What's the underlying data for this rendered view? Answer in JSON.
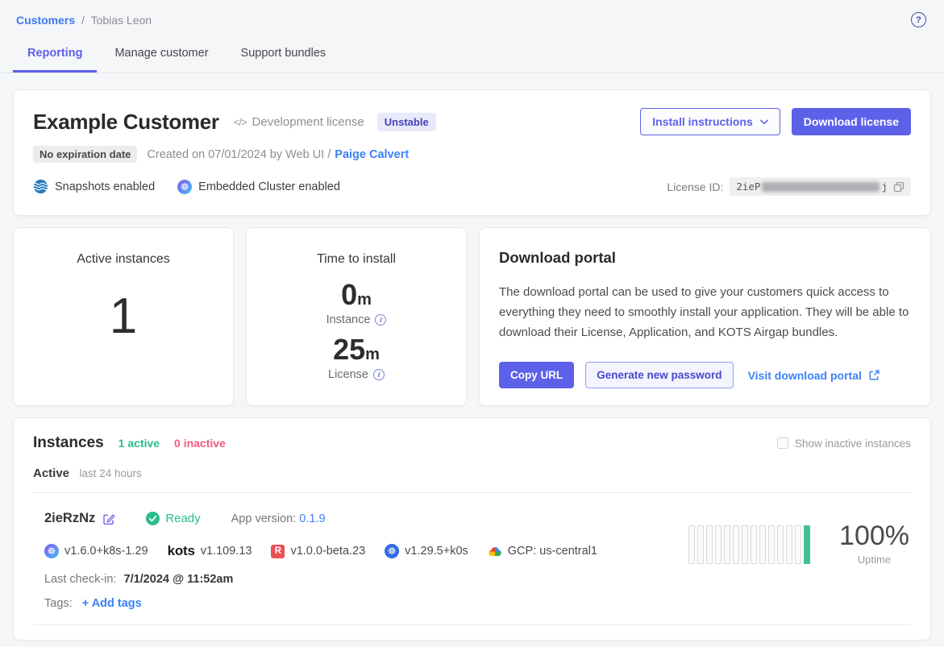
{
  "icons": {
    "help_glyph": "?",
    "code_glyph": "</>",
    "wheel_glyph": "☸",
    "info_glyph": "i",
    "replicated_glyph": "R"
  },
  "colors": {
    "indigo": "#5d61ea",
    "link_blue": "#3b82f6",
    "green": "#2abd8e",
    "pink": "#f2597c"
  },
  "topbar": {
    "breadcrumb": {
      "link": "Customers",
      "separator": "/",
      "current": "Tobias Leon"
    }
  },
  "tabs": {
    "items": [
      {
        "label": "Reporting",
        "active": true
      },
      {
        "label": "Manage customer",
        "active": false
      },
      {
        "label": "Support bundles",
        "active": false
      }
    ]
  },
  "customer": {
    "name": "Example Customer",
    "license_type": "Development license",
    "channel_badge": "Unstable",
    "install_instructions_label": "Install instructions",
    "download_license_label": "Download license",
    "expiration_badge": "No expiration date",
    "created_text": "Created on 07/01/2024 by Web UI /",
    "created_by_link": "Paige Calvert",
    "features": [
      {
        "icon": "snapshots-icon",
        "label": "Snapshots enabled"
      },
      {
        "icon": "embedded-cluster-icon",
        "label": "Embedded Cluster enabled"
      }
    ],
    "license_id": {
      "label": "License ID:",
      "visible_start": "2ieP",
      "visible_end": "j",
      "redacted": true
    }
  },
  "stats": {
    "active_instances": {
      "title": "Active instances",
      "value": "1"
    },
    "time_to_install": {
      "title": "Time to install",
      "rows": [
        {
          "value": "0",
          "unit": "m",
          "label": "Instance"
        },
        {
          "value": "25",
          "unit": "m",
          "label": "License"
        }
      ]
    },
    "download_portal": {
      "title": "Download portal",
      "description": "The download portal can be used to give your customers quick access to everything they need to smoothly install your application. They will be able to download their License, Application, and KOTS Airgap bundles.",
      "copy_url_label": "Copy URL",
      "generate_password_label": "Generate new password",
      "visit_portal_label": "Visit download portal"
    }
  },
  "instances": {
    "title": "Instances",
    "active_count": "1 active",
    "inactive_count": "0 inactive",
    "show_inactive_label": "Show inactive instances",
    "section_label": "Active",
    "section_sublabel": "last 24 hours",
    "instance": {
      "id": "2ieRzNz",
      "status": "Ready",
      "app_version_label": "App version:",
      "app_version": "0.1.9",
      "versions": [
        {
          "icon": "embedded-cluster-icon",
          "text": "v1.6.0+k8s-1.29"
        },
        {
          "icon": "kots-logo",
          "icon_text": "kots",
          "text": "v1.109.13"
        },
        {
          "icon": "replicated-icon",
          "text": "v1.0.0-beta.23"
        },
        {
          "icon": "kubernetes-icon",
          "text": "v1.29.5+k0s"
        },
        {
          "icon": "gcp-icon",
          "text": "GCP: us-central1"
        }
      ],
      "last_checkin_label": "Last check-in:",
      "last_checkin": "7/1/2024 @ 11:52am",
      "tags_label": "Tags:",
      "add_tags_label": "+ Add tags",
      "uptime": {
        "value": "100%",
        "label": "Uptime",
        "bars_total": 14,
        "bars_up_index": 13
      }
    }
  }
}
